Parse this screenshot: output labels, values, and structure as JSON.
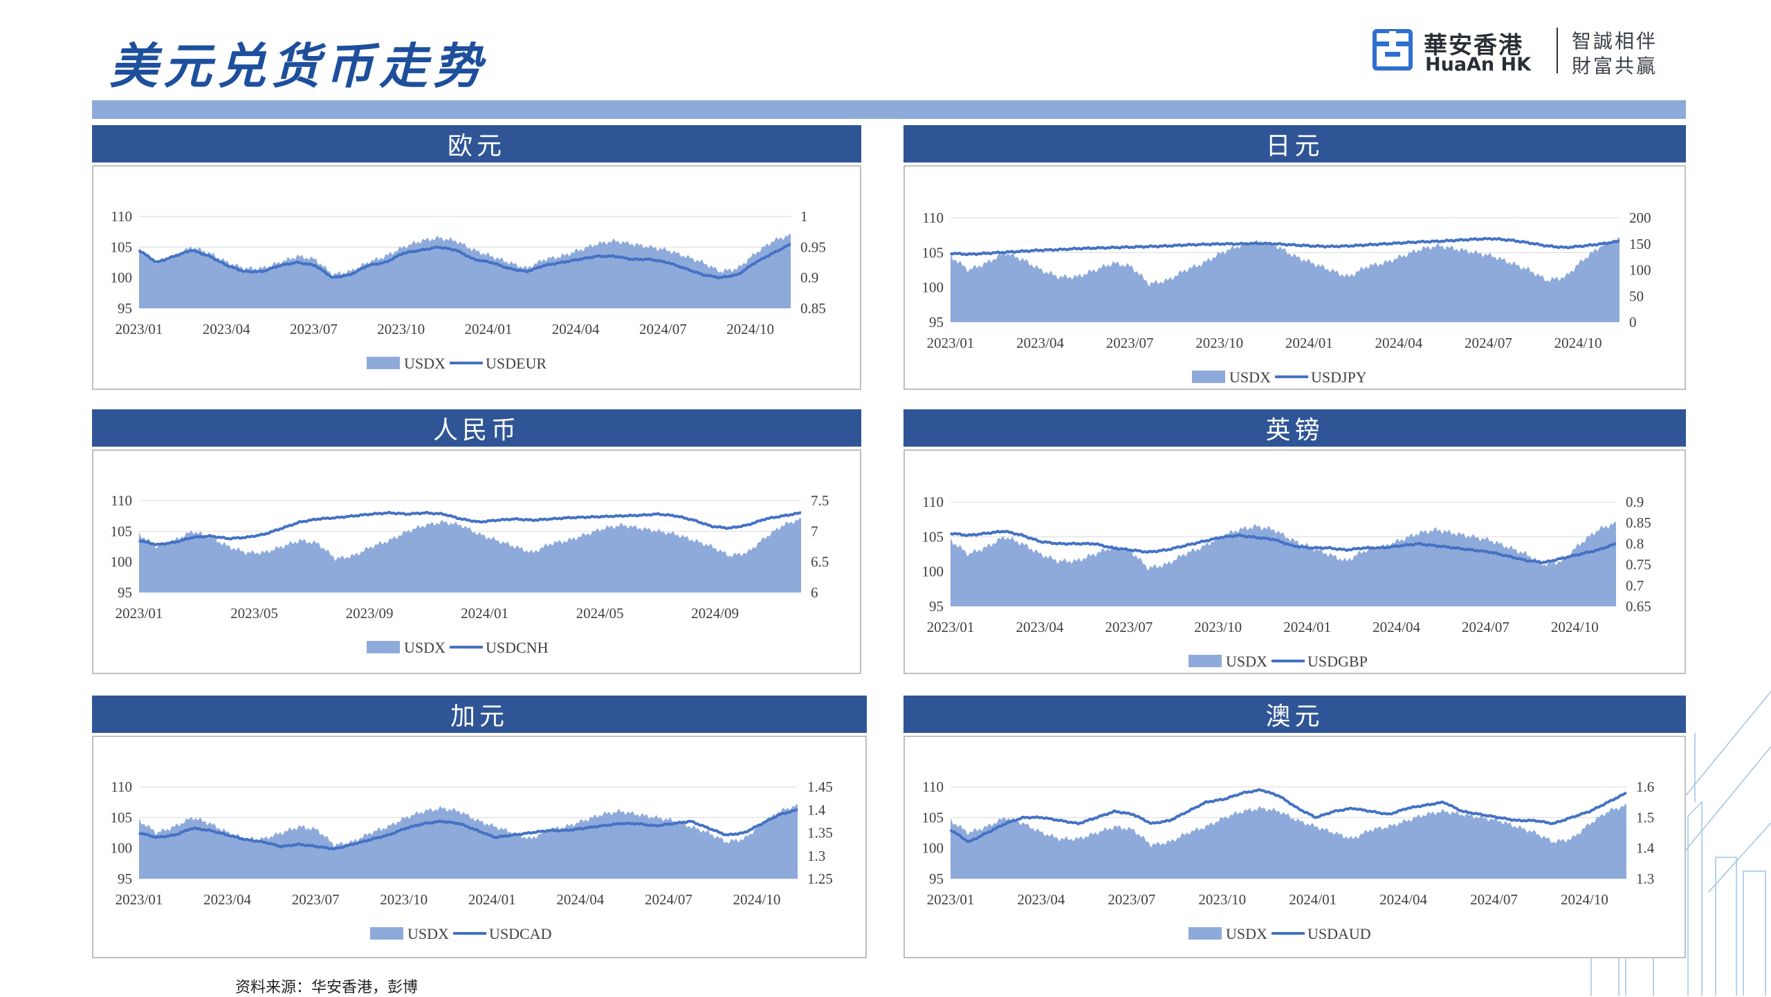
{
  "title": "美元兑货币走势",
  "logo": {
    "cn": "華安香港",
    "en": "HuaAn HK",
    "slogan1": "智誠相伴",
    "slogan2": "財富共贏"
  },
  "source": "资料来源：华安香港，彭博",
  "colors": {
    "area": "#8eaadb",
    "line": "#4472c4",
    "header": "#2f5597",
    "band": "#8eaadb"
  },
  "panels": [
    {
      "title": "欧元"
    },
    {
      "title": "日元"
    },
    {
      "title": "人民币"
    },
    {
      "title": "英镑"
    },
    {
      "title": "加元"
    },
    {
      "title": "澳元"
    }
  ],
  "chart_data": [
    {
      "type": "area+line",
      "title": "欧元",
      "x_ticks": [
        "2023/01",
        "2023/04",
        "2023/07",
        "2023/10",
        "2024/01",
        "2024/04",
        "2024/07",
        "2024/10"
      ],
      "y_left": {
        "ticks": [
          "110",
          "105",
          "100",
          "95"
        ],
        "lim": [
          95,
          110
        ]
      },
      "y_right": {
        "ticks": [
          "1",
          "0.95",
          "0.9",
          "0.85"
        ],
        "lim": [
          0.85,
          1
        ]
      },
      "series": [
        {
          "name": "USDX",
          "kind": "area",
          "axis": "left",
          "values": [
            104.5,
            102.5,
            103.5,
            105.0,
            104.0,
            102.5,
            101.5,
            101.5,
            102.5,
            103.5,
            103.0,
            100.5,
            101.0,
            102.5,
            103.5,
            105.0,
            106.0,
            106.5,
            106.0,
            104.5,
            103.5,
            102.5,
            101.5,
            103.0,
            103.5,
            104.5,
            105.5,
            106.0,
            105.5,
            105.0,
            104.5,
            103.5,
            102.5,
            101.0,
            101.5,
            104.0,
            106.0,
            107.0
          ]
        },
        {
          "name": "USDEUR",
          "kind": "line",
          "axis": "right",
          "values": [
            0.945,
            0.925,
            0.935,
            0.945,
            0.935,
            0.92,
            0.91,
            0.91,
            0.92,
            0.925,
            0.92,
            0.9,
            0.905,
            0.92,
            0.925,
            0.94,
            0.945,
            0.95,
            0.945,
            0.93,
            0.925,
            0.915,
            0.91,
            0.92,
            0.925,
            0.93,
            0.935,
            0.935,
            0.93,
            0.93,
            0.925,
            0.915,
            0.905,
            0.9,
            0.905,
            0.925,
            0.94,
            0.955
          ]
        }
      ]
    },
    {
      "type": "area+line",
      "title": "日元",
      "x_ticks": [
        "2023/01",
        "2023/04",
        "2023/07",
        "2023/10",
        "2024/01",
        "2024/04",
        "2024/07",
        "2024/10"
      ],
      "y_left": {
        "ticks": [
          "110",
          "105",
          "100",
          "95"
        ],
        "lim": [
          95,
          110
        ]
      },
      "y_right": {
        "ticks": [
          "200",
          "150",
          "100",
          "50",
          "0"
        ],
        "lim": [
          0,
          200
        ]
      },
      "series": [
        {
          "name": "USDX",
          "kind": "area",
          "axis": "left",
          "values": [
            104.5,
            102.5,
            103.5,
            105.0,
            104.0,
            102.5,
            101.5,
            101.5,
            102.5,
            103.5,
            103.0,
            100.5,
            101.0,
            102.5,
            103.5,
            105.0,
            106.0,
            106.5,
            106.0,
            104.5,
            103.5,
            102.5,
            101.5,
            103.0,
            103.5,
            104.5,
            105.5,
            106.0,
            105.5,
            105.0,
            104.5,
            103.5,
            102.5,
            101.0,
            101.5,
            104.0,
            106.0,
            107.0
          ]
        },
        {
          "name": "USDJPY",
          "kind": "line",
          "axis": "right",
          "values": [
            132,
            130,
            132,
            134,
            136,
            138,
            139,
            141,
            142,
            143,
            144,
            145,
            146,
            148,
            149,
            150,
            150,
            151,
            150,
            148,
            146,
            145,
            146,
            148,
            150,
            152,
            154,
            155,
            157,
            159,
            160,
            157,
            152,
            146,
            143,
            146,
            150,
            155
          ]
        }
      ]
    },
    {
      "type": "area+line",
      "title": "人民币",
      "x_ticks": [
        "2023/01",
        "2023/05",
        "2023/09",
        "2024/01",
        "2024/05",
        "2024/09"
      ],
      "y_left": {
        "ticks": [
          "110",
          "105",
          "100",
          "95"
        ],
        "lim": [
          95,
          110
        ]
      },
      "y_right": {
        "ticks": [
          "7.5",
          "7",
          "6.5",
          "6"
        ],
        "lim": [
          6,
          7.5
        ]
      },
      "series": [
        {
          "name": "USDX",
          "kind": "area",
          "axis": "left",
          "values": [
            104.5,
            102.5,
            103.5,
            105.0,
            104.0,
            102.5,
            101.5,
            101.5,
            102.5,
            103.5,
            103.0,
            100.5,
            101.0,
            102.5,
            103.5,
            105.0,
            106.0,
            106.5,
            106.0,
            104.5,
            103.5,
            102.5,
            101.5,
            103.0,
            103.5,
            104.5,
            105.5,
            106.0,
            105.5,
            105.0,
            104.5,
            103.5,
            102.5,
            101.0,
            101.5,
            104.0,
            106.0,
            107.0
          ]
        },
        {
          "name": "USDCNH",
          "kind": "line",
          "axis": "right",
          "values": [
            6.85,
            6.78,
            6.82,
            6.9,
            6.92,
            6.88,
            6.9,
            6.95,
            7.05,
            7.15,
            7.2,
            7.22,
            7.25,
            7.28,
            7.3,
            7.28,
            7.3,
            7.28,
            7.2,
            7.15,
            7.18,
            7.2,
            7.18,
            7.2,
            7.22,
            7.23,
            7.24,
            7.25,
            7.26,
            7.28,
            7.25,
            7.18,
            7.08,
            7.05,
            7.1,
            7.2,
            7.25,
            7.3
          ]
        }
      ]
    },
    {
      "type": "area+line",
      "title": "英镑",
      "x_ticks": [
        "2023/01",
        "2023/04",
        "2023/07",
        "2023/10",
        "2024/01",
        "2024/04",
        "2024/07",
        "2024/10"
      ],
      "y_left": {
        "ticks": [
          "110",
          "105",
          "100",
          "95"
        ],
        "lim": [
          95,
          110
        ]
      },
      "y_right": {
        "ticks": [
          "0.9",
          "0.85",
          "0.8",
          "0.75",
          "0.7",
          "0.65"
        ],
        "lim": [
          0.65,
          0.9
        ]
      },
      "series": [
        {
          "name": "USDX",
          "kind": "area",
          "axis": "left",
          "values": [
            104.5,
            102.5,
            103.5,
            105.0,
            104.0,
            102.5,
            101.5,
            101.5,
            102.5,
            103.5,
            103.0,
            100.5,
            101.0,
            102.5,
            103.5,
            105.0,
            106.0,
            106.5,
            106.0,
            104.5,
            103.5,
            102.5,
            101.5,
            103.0,
            103.5,
            104.5,
            105.5,
            106.0,
            105.5,
            105.0,
            104.5,
            103.5,
            102.5,
            101.0,
            101.5,
            104.0,
            106.0,
            107.0
          ]
        },
        {
          "name": "USDGBP",
          "kind": "line",
          "axis": "right",
          "values": [
            0.825,
            0.82,
            0.825,
            0.83,
            0.82,
            0.805,
            0.8,
            0.8,
            0.8,
            0.79,
            0.785,
            0.78,
            0.785,
            0.795,
            0.805,
            0.815,
            0.82,
            0.815,
            0.81,
            0.795,
            0.79,
            0.79,
            0.785,
            0.79,
            0.79,
            0.795,
            0.8,
            0.795,
            0.79,
            0.785,
            0.78,
            0.77,
            0.76,
            0.755,
            0.765,
            0.775,
            0.785,
            0.8
          ]
        }
      ]
    },
    {
      "type": "area+line",
      "title": "加元",
      "x_ticks": [
        "2023/01",
        "2023/04",
        "2023/07",
        "2023/10",
        "2024/01",
        "2024/04",
        "2024/07",
        "2024/10"
      ],
      "y_left": {
        "ticks": [
          "110",
          "105",
          "100",
          "95"
        ],
        "lim": [
          95,
          110
        ]
      },
      "y_right": {
        "ticks": [
          "1.45",
          "1.4",
          "1.35",
          "1.3",
          "1.25"
        ],
        "lim": [
          1.25,
          1.45
        ]
      },
      "series": [
        {
          "name": "USDX",
          "kind": "area",
          "axis": "left",
          "values": [
            104.5,
            102.5,
            103.5,
            105.0,
            104.0,
            102.5,
            101.5,
            101.5,
            102.5,
            103.5,
            103.0,
            100.5,
            101.0,
            102.5,
            103.5,
            105.0,
            106.0,
            106.5,
            106.0,
            104.5,
            103.5,
            102.5,
            101.5,
            103.0,
            103.5,
            104.5,
            105.5,
            106.0,
            105.5,
            105.0,
            104.5,
            103.5,
            102.5,
            101.0,
            101.5,
            104.0,
            106.0,
            107.0
          ]
        },
        {
          "name": "USDCAD",
          "kind": "line",
          "axis": "right",
          "values": [
            1.35,
            1.34,
            1.345,
            1.36,
            1.355,
            1.345,
            1.335,
            1.33,
            1.32,
            1.325,
            1.32,
            1.315,
            1.325,
            1.335,
            1.345,
            1.36,
            1.37,
            1.375,
            1.37,
            1.355,
            1.34,
            1.345,
            1.35,
            1.355,
            1.355,
            1.36,
            1.365,
            1.37,
            1.37,
            1.365,
            1.37,
            1.375,
            1.36,
            1.345,
            1.35,
            1.37,
            1.39,
            1.4
          ]
        }
      ]
    },
    {
      "type": "area+line",
      "title": "澳元",
      "x_ticks": [
        "2023/01",
        "2023/04",
        "2023/07",
        "2023/10",
        "2024/01",
        "2024/04",
        "2024/07",
        "2024/10"
      ],
      "y_left": {
        "ticks": [
          "110",
          "105",
          "100",
          "95"
        ],
        "lim": [
          95,
          110
        ]
      },
      "y_right": {
        "ticks": [
          "1.6",
          "1.5",
          "1.4",
          "1.3"
        ],
        "lim": [
          1.3,
          1.6
        ]
      },
      "series": [
        {
          "name": "USDX",
          "kind": "area",
          "axis": "left",
          "values": [
            104.5,
            102.5,
            103.5,
            105.0,
            104.0,
            102.5,
            101.5,
            101.5,
            102.5,
            103.5,
            103.0,
            100.5,
            101.0,
            102.5,
            103.5,
            105.0,
            106.0,
            106.5,
            106.0,
            104.5,
            103.5,
            102.5,
            101.5,
            103.0,
            103.5,
            104.5,
            105.5,
            106.0,
            105.5,
            105.0,
            104.5,
            103.5,
            102.5,
            101.0,
            101.5,
            104.0,
            106.0,
            107.0
          ]
        },
        {
          "name": "USDAUD",
          "kind": "line",
          "axis": "right",
          "values": [
            1.46,
            1.42,
            1.45,
            1.48,
            1.5,
            1.5,
            1.49,
            1.48,
            1.5,
            1.52,
            1.51,
            1.48,
            1.49,
            1.52,
            1.55,
            1.56,
            1.58,
            1.59,
            1.57,
            1.53,
            1.5,
            1.52,
            1.53,
            1.52,
            1.51,
            1.53,
            1.54,
            1.55,
            1.52,
            1.51,
            1.5,
            1.49,
            1.49,
            1.48,
            1.5,
            1.52,
            1.55,
            1.58
          ]
        }
      ]
    }
  ]
}
